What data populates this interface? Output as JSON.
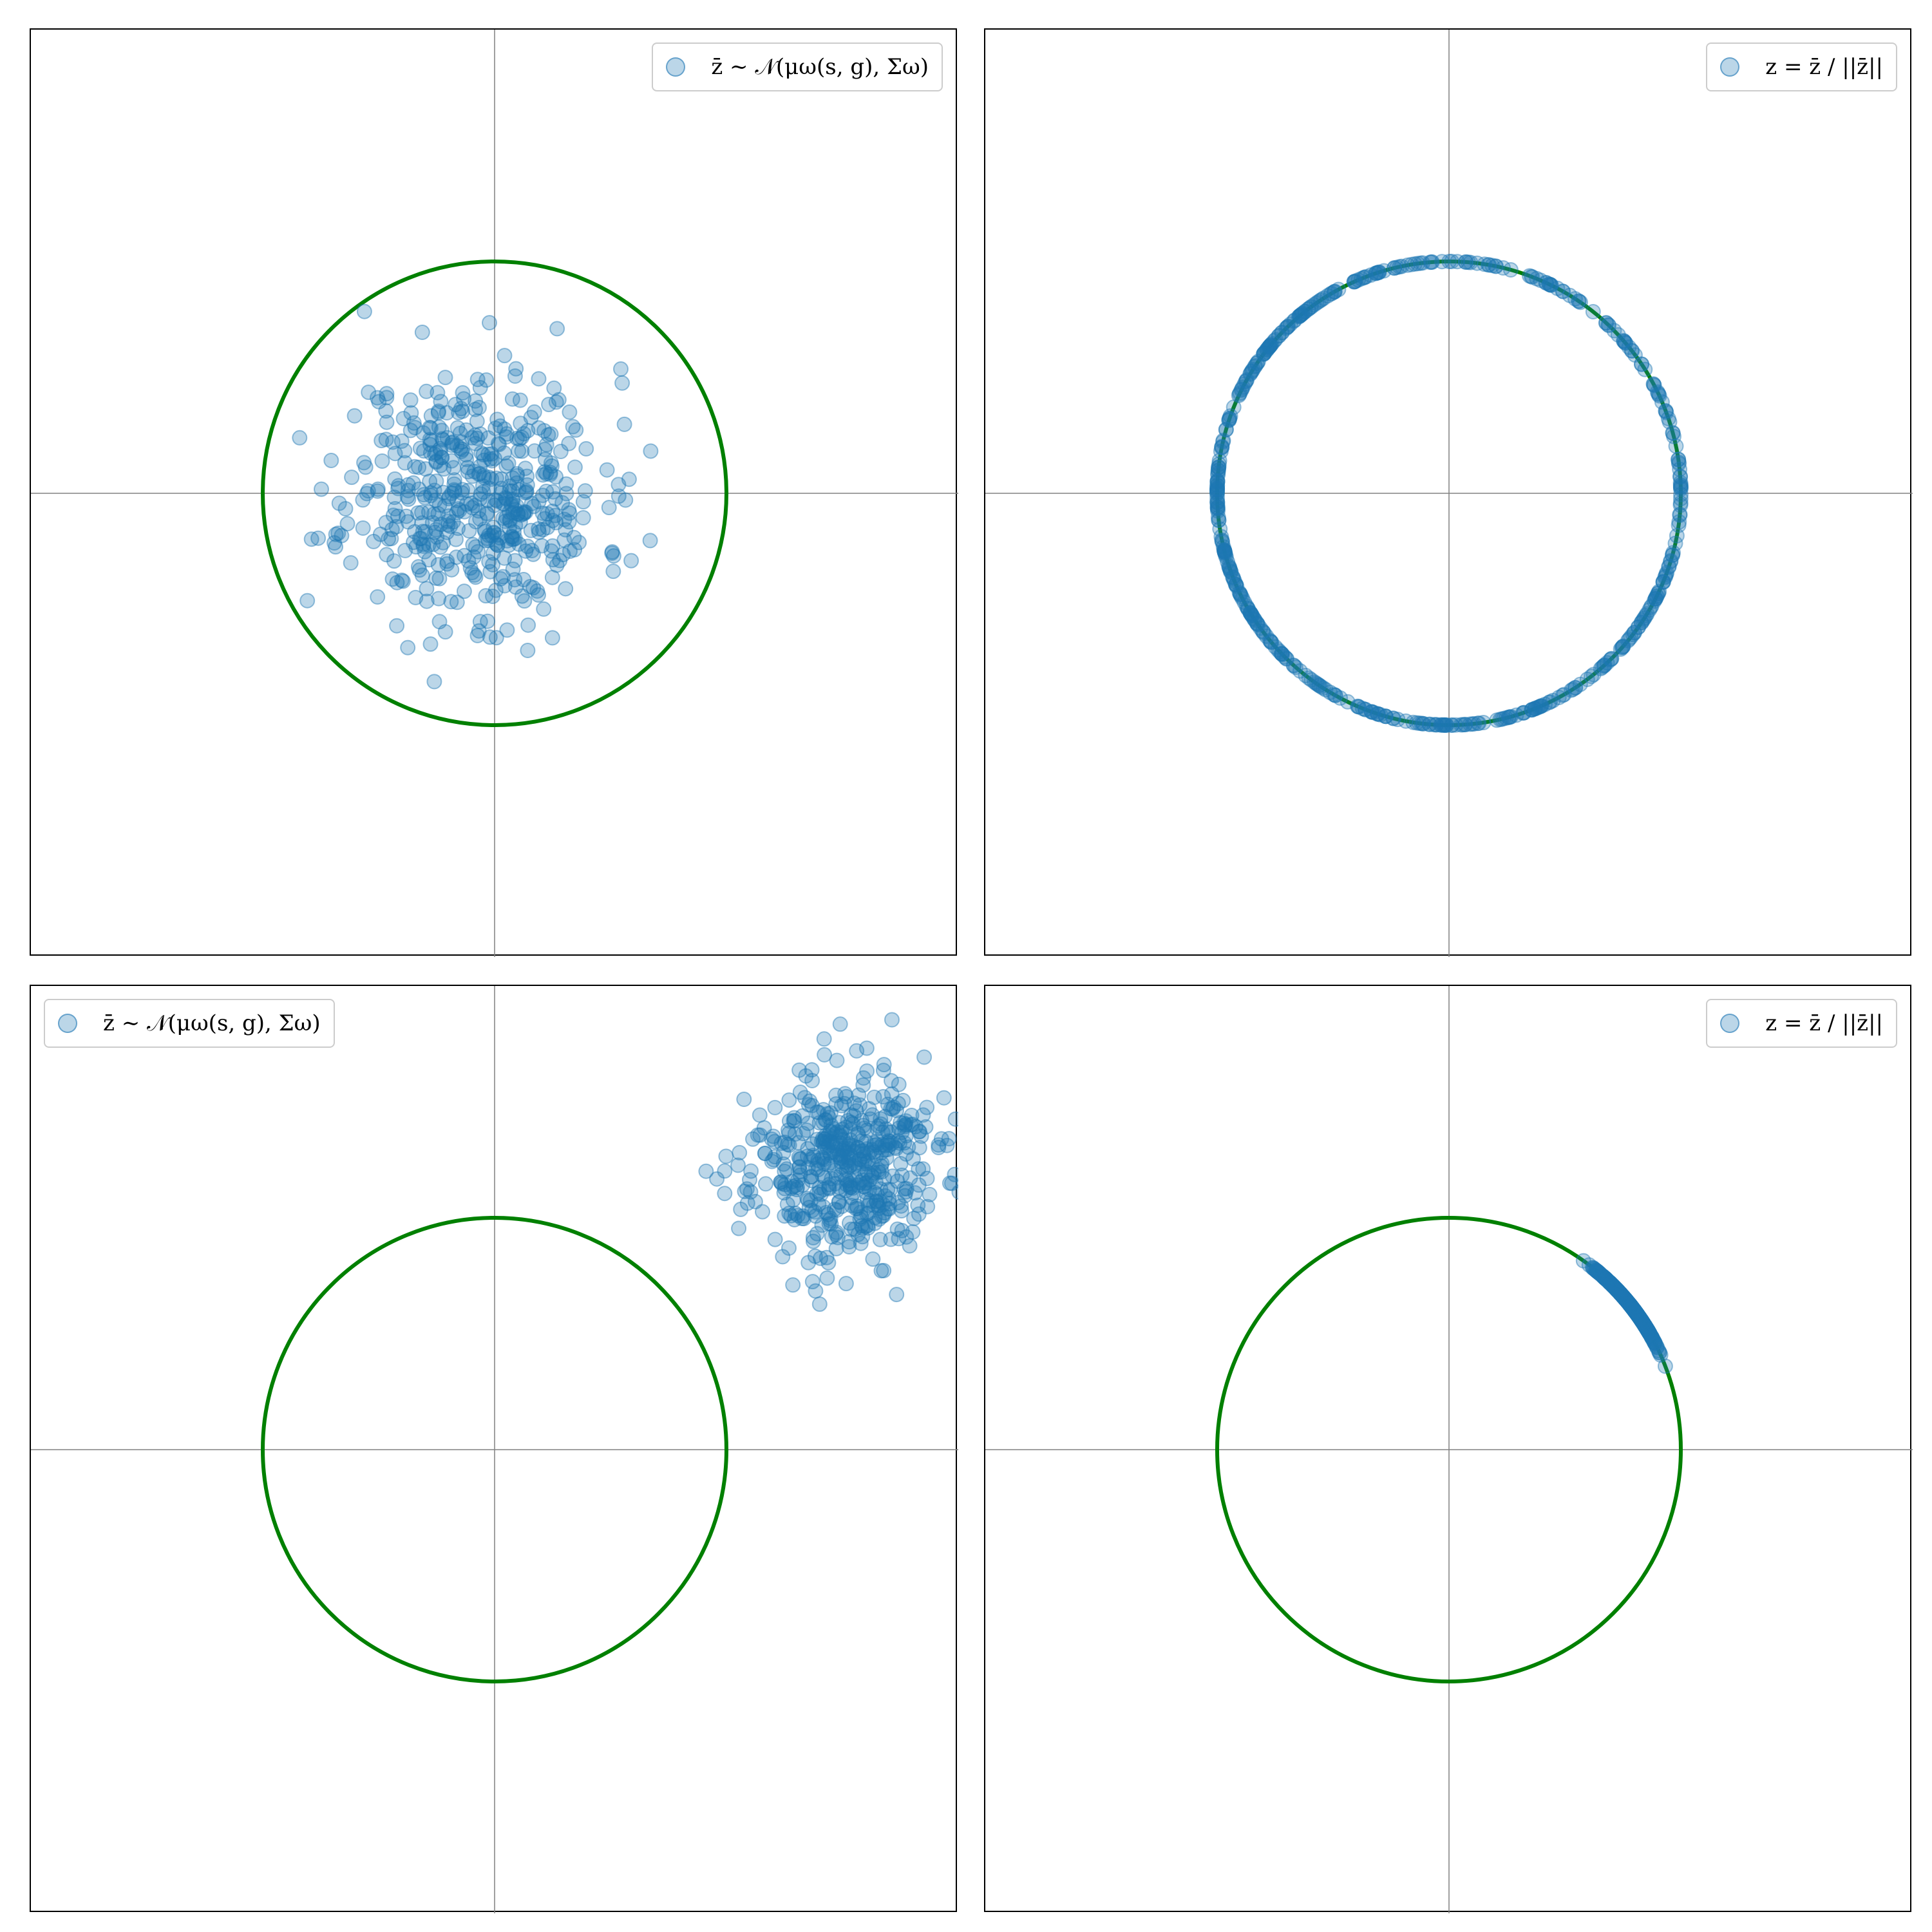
{
  "chart_data": [
    {
      "type": "scatter",
      "panel": "top-left",
      "legend": {
        "label": "z̄ ∼ 𝒩(μω(s, g), Σω)",
        "placement": "upper right"
      },
      "xlim": [
        -2,
        2
      ],
      "ylim": [
        -2,
        2
      ],
      "axis_lines": "x=0, y=0",
      "reference_circle": {
        "center": [
          0,
          0
        ],
        "radius": 1,
        "color": "#008000"
      },
      "distribution": {
        "kind": "gaussian",
        "center": [
          -0.08,
          0.0
        ],
        "std": [
          0.27,
          0.27
        ],
        "n": 500,
        "seed": 11
      }
    },
    {
      "type": "scatter",
      "panel": "top-right",
      "legend": {
        "label": "z = z̄ / ||z̄||",
        "placement": "upper right"
      },
      "xlim": [
        -2,
        2
      ],
      "ylim": [
        -2,
        2
      ],
      "axis_lines": "x=0, y=0",
      "reference_circle": {
        "center": [
          0,
          0
        ],
        "radius": 1,
        "color": "#008000"
      },
      "distribution": {
        "kind": "normalized",
        "source_center": [
          -0.08,
          0.0
        ],
        "std": [
          0.27,
          0.27
        ],
        "n": 500,
        "seed": 11
      }
    },
    {
      "type": "scatter",
      "panel": "bottom-left",
      "legend": {
        "label": "z̄ ∼ 𝒩(μω(s, g), Σω)",
        "placement": "upper left"
      },
      "xlim": [
        -2,
        2
      ],
      "ylim": [
        -2,
        2
      ],
      "axis_lines": "x=0, y=0",
      "reference_circle": {
        "center": [
          0,
          0
        ],
        "radius": 1,
        "color": "#008000"
      },
      "distribution": {
        "kind": "gaussian",
        "center": [
          1.5,
          1.22
        ],
        "std": [
          0.2,
          0.2
        ],
        "n": 500,
        "seed": 23
      }
    },
    {
      "type": "scatter",
      "panel": "bottom-right",
      "legend": {
        "label": "z = z̄ / ||z̄||",
        "placement": "upper right"
      },
      "xlim": [
        -2,
        2
      ],
      "ylim": [
        -2,
        2
      ],
      "axis_lines": "x=0, y=0",
      "reference_circle": {
        "center": [
          0,
          0
        ],
        "radius": 1,
        "color": "#008000"
      },
      "distribution": {
        "kind": "normalized",
        "source_center": [
          1.5,
          1.22
        ],
        "std": [
          0.2,
          0.2
        ],
        "n": 500,
        "seed": 23
      }
    }
  ],
  "colors": {
    "points": "#1f77b4",
    "circle": "#008000",
    "axis_lines": "#808080"
  }
}
